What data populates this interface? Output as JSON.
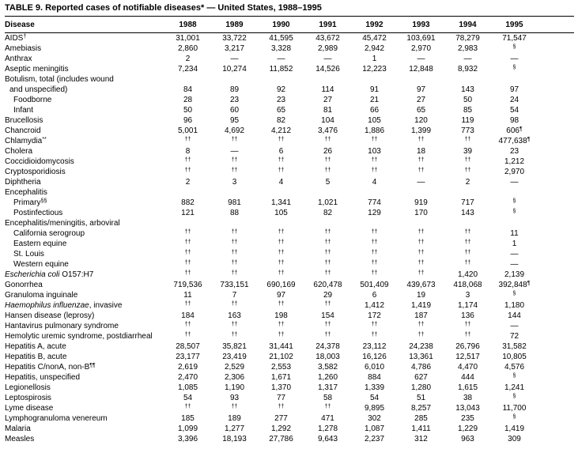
{
  "title": "TABLE 9. Reported cases of notifiable diseases* — United States, 1988–1995",
  "columns": [
    "Disease",
    "1988",
    "1989",
    "1990",
    "1991",
    "1992",
    "1993",
    "1994",
    "1995"
  ],
  "rows": [
    {
      "name": "AIDS†",
      "values": [
        "31,001",
        "33,722",
        "41,595",
        "43,672",
        "45,472",
        "103,691",
        "78,279",
        "71,547"
      ]
    },
    {
      "name": "Amebiasis",
      "values": [
        "2,860",
        "3,217",
        "3,328",
        "2,989",
        "2,942",
        "2,970",
        "2,983",
        "§"
      ]
    },
    {
      "name": "Anthrax",
      "values": [
        "2",
        "—",
        "—",
        "—",
        "1",
        "—",
        "—",
        "—"
      ]
    },
    {
      "name": "Aseptic meningitis",
      "values": [
        "7,234",
        "10,274",
        "11,852",
        "14,526",
        "12,223",
        "12,848",
        "8,932",
        "§"
      ]
    },
    {
      "name": "Botulism, total (includes wound",
      "name2": "and unspecified)",
      "values": [
        "84",
        "89",
        "92",
        "114",
        "91",
        "97",
        "143",
        "97"
      ]
    },
    {
      "name": "Foodborne",
      "indent": 1,
      "values": [
        "28",
        "23",
        "23",
        "27",
        "21",
        "27",
        "50",
        "24"
      ]
    },
    {
      "name": "Infant",
      "indent": 1,
      "values": [
        "50",
        "60",
        "65",
        "81",
        "66",
        "65",
        "85",
        "54"
      ]
    },
    {
      "name": "Brucellosis",
      "values": [
        "96",
        "95",
        "82",
        "104",
        "105",
        "120",
        "119",
        "98"
      ]
    },
    {
      "name": "Chancroid",
      "values": [
        "5,001",
        "4,692",
        "4,212",
        "3,476",
        "1,886",
        "1,399",
        "773",
        "606¶"
      ]
    },
    {
      "name": "Chlamydia**",
      "values": [
        "††",
        "††",
        "††",
        "††",
        "††",
        "††",
        "††",
        "477,638¶"
      ]
    },
    {
      "name": "Cholera",
      "values": [
        "8",
        "—",
        "6",
        "26",
        "103",
        "18",
        "39",
        "23"
      ]
    },
    {
      "name": "Coccidioidomycosis",
      "values": [
        "††",
        "††",
        "††",
        "††",
        "††",
        "††",
        "††",
        "1,212"
      ]
    },
    {
      "name": "Cryptosporidiosis",
      "values": [
        "††",
        "††",
        "††",
        "††",
        "††",
        "††",
        "††",
        "2,970"
      ]
    },
    {
      "name": "Diphtheria",
      "values": [
        "2",
        "3",
        "4",
        "5",
        "4",
        "—",
        "2",
        "—"
      ]
    },
    {
      "name": "Encephalitis",
      "values": []
    },
    {
      "name": "Primary§§",
      "indent": 1,
      "values": [
        "882",
        "981",
        "1,341",
        "1,021",
        "774",
        "919",
        "717",
        "§"
      ]
    },
    {
      "name": "Postinfectious",
      "indent": 1,
      "values": [
        "121",
        "88",
        "105",
        "82",
        "129",
        "170",
        "143",
        "§"
      ]
    },
    {
      "name": "Encephalitis/meningitis, arboviral",
      "values": []
    },
    {
      "name": "California serogroup",
      "indent": 1,
      "values": [
        "††",
        "††",
        "††",
        "††",
        "††",
        "††",
        "††",
        "11"
      ]
    },
    {
      "name": "Eastern equine",
      "indent": 1,
      "values": [
        "††",
        "††",
        "††",
        "††",
        "††",
        "††",
        "††",
        "1"
      ]
    },
    {
      "name": "St. Louis",
      "indent": 1,
      "values": [
        "††",
        "††",
        "††",
        "††",
        "††",
        "††",
        "††",
        "—"
      ]
    },
    {
      "name": "Western equine",
      "indent": 1,
      "values": [
        "††",
        "††",
        "††",
        "††",
        "††",
        "††",
        "††",
        "—"
      ]
    },
    {
      "name": "Escherichia coli O157:H7",
      "italic": "Escherichia coli",
      "values": [
        "††",
        "††",
        "††",
        "††",
        "††",
        "††",
        "1,420",
        "2,139"
      ]
    },
    {
      "name": "Gonorrhea",
      "values": [
        "719,536",
        "733,151",
        "690,169",
        "620,478",
        "501,409",
        "439,673",
        "418,068",
        "392,848¶"
      ]
    },
    {
      "name": "Granuloma inguinale",
      "values": [
        "11",
        "7",
        "97",
        "29",
        "6",
        "19",
        "3",
        "§"
      ]
    },
    {
      "name": "Haemophilus influenzae, invasive",
      "italic": "Haemophilus influenzae",
      "values": [
        "††",
        "††",
        "††",
        "††",
        "1,412",
        "1,419",
        "1,174",
        "1,180"
      ]
    },
    {
      "name": "Hansen disease (leprosy)",
      "values": [
        "184",
        "163",
        "198",
        "154",
        "172",
        "187",
        "136",
        "144"
      ]
    },
    {
      "name": "Hantavirus pulmonary syndrome",
      "values": [
        "††",
        "††",
        "††",
        "††",
        "††",
        "††",
        "††",
        "—"
      ]
    },
    {
      "name": "Hemolytic uremic syndrome, postdiarrheal",
      "values": [
        "††",
        "††",
        "††",
        "††",
        "††",
        "††",
        "††",
        "72"
      ]
    },
    {
      "name": "Hepatitis A, acute",
      "values": [
        "28,507",
        "35,821",
        "31,441",
        "24,378",
        "23,112",
        "24,238",
        "26,796",
        "31,582"
      ]
    },
    {
      "name": "Hepatitis B, acute",
      "values": [
        "23,177",
        "23,419",
        "21,102",
        "18,003",
        "16,126",
        "13,361",
        "12,517",
        "10,805"
      ]
    },
    {
      "name": "Hepatitis C/nonA, non-B¶¶",
      "values": [
        "2,619",
        "2,529",
        "2,553",
        "3,582",
        "6,010",
        "4,786",
        "4,470",
        "4,576"
      ]
    },
    {
      "name": "Hepatitis, unspecified",
      "values": [
        "2,470",
        "2,306",
        "1,671",
        "1,260",
        "884",
        "627",
        "444",
        "§"
      ]
    },
    {
      "name": "Legionellosis",
      "values": [
        "1,085",
        "1,190",
        "1,370",
        "1,317",
        "1,339",
        "1,280",
        "1,615",
        "1,241"
      ]
    },
    {
      "name": "Leptospirosis",
      "values": [
        "54",
        "93",
        "77",
        "58",
        "54",
        "51",
        "38",
        "§"
      ]
    },
    {
      "name": "Lyme disease",
      "values": [
        "††",
        "††",
        "††",
        "††",
        "9,895",
        "8,257",
        "13,043",
        "11,700"
      ]
    },
    {
      "name": "Lymphogranuloma venereum",
      "values": [
        "185",
        "189",
        "277",
        "471",
        "302",
        "285",
        "235",
        "§"
      ]
    },
    {
      "name": "Malaria",
      "values": [
        "1,099",
        "1,277",
        "1,292",
        "1,278",
        "1,087",
        "1,411",
        "1,229",
        "1,419"
      ]
    },
    {
      "name": "Measles",
      "values": [
        "3,396",
        "18,193",
        "27,786",
        "9,643",
        "2,237",
        "312",
        "963",
        "309"
      ]
    }
  ]
}
